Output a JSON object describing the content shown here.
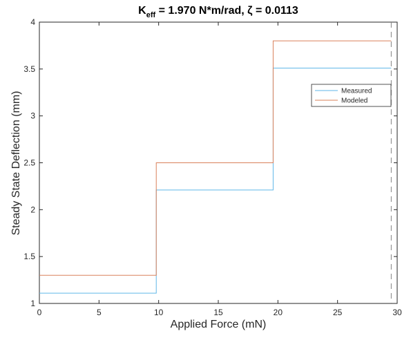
{
  "chart_data": {
    "type": "line",
    "step": true,
    "title": {
      "prefix": "K",
      "subscript": "eff",
      "suffix": " = 1.970 N*m/rad, ζ = 0.0113"
    },
    "xlabel": "Applied Force (mN)",
    "ylabel": "Steady State Deflection (mm)",
    "xlim": [
      0,
      30
    ],
    "ylim": [
      1,
      4
    ],
    "xticks": [
      "0",
      "5",
      "10",
      "15",
      "20",
      "25",
      "30"
    ],
    "yticks": [
      "1",
      "1.5",
      "2",
      "2.5",
      "3",
      "3.5",
      "4"
    ],
    "grid": false,
    "legend_position": "upper-right",
    "series": [
      {
        "name": "Measured",
        "color": "#5fb6e8",
        "x": [
          0,
          9.8,
          9.8,
          19.6,
          19.6,
          29.5
        ],
        "y": [
          1.11,
          1.11,
          2.21,
          2.21,
          3.51,
          3.51
        ]
      },
      {
        "name": "Modeled",
        "color": "#d9805a",
        "x": [
          0,
          9.8,
          9.8,
          19.6,
          19.6,
          29.5
        ],
        "y": [
          1.3,
          1.3,
          2.5,
          2.5,
          3.8,
          3.8
        ]
      }
    ],
    "reference_line": {
      "x": 29.5,
      "style": "dashed",
      "color": "#808080"
    }
  }
}
